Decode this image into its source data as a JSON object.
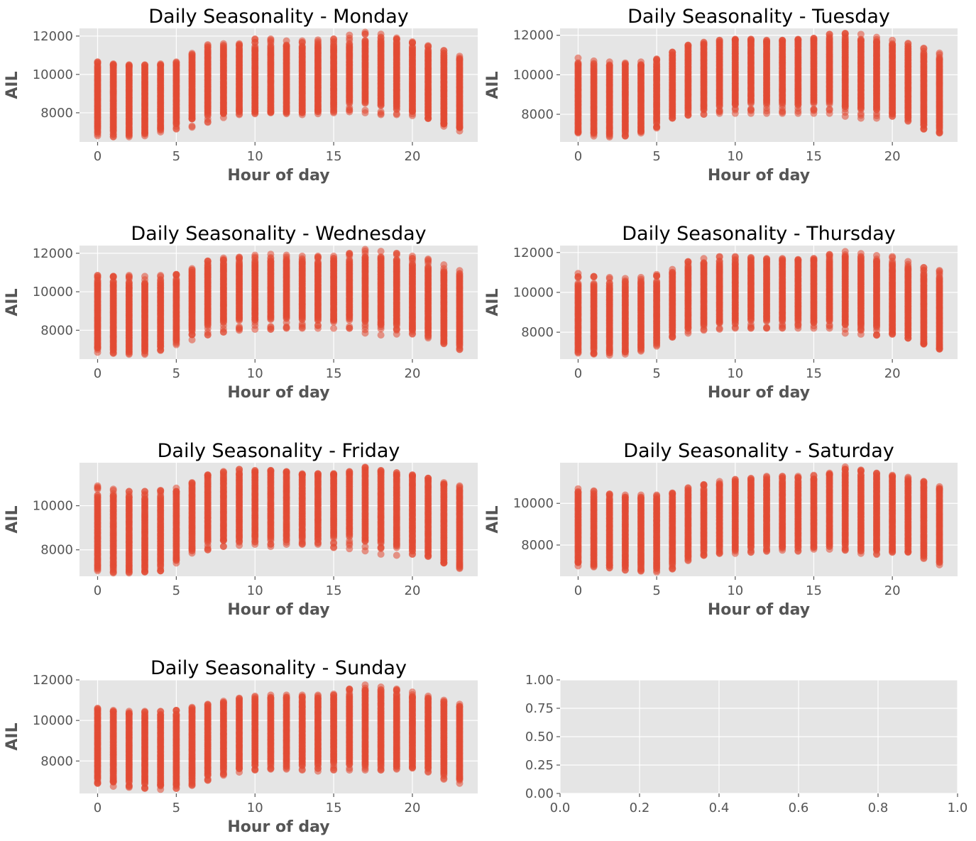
{
  "figure": {
    "background": "#ffffff",
    "plot_background": "#e5e5e5",
    "marker_color": "#e24a33"
  },
  "chart_data": [
    {
      "type": "scatter",
      "title": "Daily Seasonality - Monday",
      "xlabel": "Hour of day",
      "ylabel": "AIL",
      "xlim": [
        -1.15,
        24.15
      ],
      "ylim": [
        6480,
        12400
      ],
      "xticks": [
        0,
        5,
        10,
        15,
        20
      ],
      "yticks": [
        8000,
        10000,
        12000
      ],
      "grid": true,
      "hours": [
        0,
        1,
        2,
        3,
        4,
        5,
        6,
        7,
        8,
        9,
        10,
        11,
        12,
        13,
        14,
        15,
        16,
        17,
        18,
        19,
        20,
        21,
        22,
        23
      ],
      "bottom_outlier": [
        6800,
        6750,
        6750,
        6800,
        7000,
        7150,
        7250,
        7500,
        7750,
        7900,
        7950,
        8000,
        7950,
        7900,
        7950,
        8000,
        8050,
        8000,
        7900,
        7900,
        7850,
        7700,
        7300,
        7050
      ],
      "band_low": [
        7100,
        7000,
        6950,
        7000,
        7200,
        7450,
        7700,
        7900,
        8000,
        8100,
        8100,
        8100,
        8100,
        8100,
        8150,
        8250,
        8500,
        8600,
        8400,
        8300,
        8100,
        7850,
        7450,
        7250
      ],
      "band_high": [
        10450,
        10450,
        10400,
        10350,
        10400,
        10500,
        10900,
        11300,
        11350,
        11400,
        11450,
        11500,
        11450,
        11450,
        11500,
        11550,
        11550,
        11750,
        11750,
        11700,
        11450,
        11250,
        11000,
        10750
      ],
      "top_outlier": [
        10650,
        10550,
        10500,
        10500,
        10550,
        10650,
        11100,
        11550,
        11600,
        11600,
        11850,
        11850,
        11750,
        11750,
        11800,
        11850,
        12050,
        12200,
        12100,
        11900,
        11700,
        11500,
        11250,
        10950
      ],
      "series": [
        {
          "name": "",
          "color": "#e24a33"
        }
      ]
    },
    {
      "type": "scatter",
      "title": "Daily Seasonality - Tuesday",
      "xlabel": "Hour of day",
      "ylabel": "AIL",
      "xlim": [
        -1.15,
        24.15
      ],
      "ylim": [
        6600,
        12350
      ],
      "xticks": [
        0,
        5,
        10,
        15,
        20
      ],
      "yticks": [
        8000,
        10000,
        12000
      ],
      "grid": true,
      "hours": [
        0,
        1,
        2,
        3,
        4,
        5,
        6,
        7,
        8,
        9,
        10,
        11,
        12,
        13,
        14,
        15,
        16,
        17,
        18,
        19,
        20,
        21,
        22,
        23
      ],
      "bottom_outlier": [
        7050,
        6900,
        6850,
        6900,
        7050,
        7300,
        7800,
        7950,
        8000,
        8050,
        8050,
        8050,
        8050,
        8050,
        8050,
        8050,
        8050,
        7900,
        7800,
        7800,
        7900,
        7650,
        7250,
        7050
      ],
      "band_low": [
        7150,
        7100,
        7050,
        7100,
        7200,
        7550,
        7950,
        8150,
        8300,
        8400,
        8500,
        8550,
        8550,
        8500,
        8500,
        8550,
        8600,
        8400,
        8300,
        8250,
        8050,
        7850,
        7450,
        7250
      ],
      "band_high": [
        10500,
        10400,
        10400,
        10400,
        10450,
        10600,
        11000,
        11350,
        11500,
        11600,
        11700,
        11700,
        11650,
        11650,
        11700,
        11750,
        11800,
        11850,
        11700,
        11650,
        11450,
        11350,
        11050,
        10800
      ],
      "top_outlier": [
        10850,
        10700,
        10650,
        10600,
        10650,
        10800,
        11150,
        11500,
        11650,
        11750,
        11800,
        11800,
        11750,
        11750,
        11800,
        11850,
        12050,
        12100,
        12050,
        11900,
        11750,
        11600,
        11350,
        11100
      ],
      "series": [
        {
          "name": "",
          "color": "#e24a33"
        }
      ]
    },
    {
      "type": "scatter",
      "title": "Daily Seasonality - Wednesday",
      "xlabel": "Hour of day",
      "ylabel": "AIL",
      "xlim": [
        -1.15,
        24.15
      ],
      "ylim": [
        6500,
        12400
      ],
      "xticks": [
        0,
        5,
        10,
        15,
        20
      ],
      "yticks": [
        8000,
        10000,
        12000
      ],
      "grid": true,
      "hours": [
        0,
        1,
        2,
        3,
        4,
        5,
        6,
        7,
        8,
        9,
        10,
        11,
        12,
        13,
        14,
        15,
        16,
        17,
        18,
        19,
        20,
        21,
        22,
        23
      ],
      "bottom_outlier": [
        6850,
        6800,
        6750,
        6750,
        6950,
        7250,
        7500,
        7750,
        7900,
        8000,
        8050,
        8050,
        8100,
        8100,
        8100,
        8100,
        8100,
        7850,
        7750,
        7800,
        7800,
        7600,
        7300,
        7000
      ],
      "band_low": [
        7100,
        7000,
        6950,
        7000,
        7150,
        7500,
        7950,
        8250,
        8400,
        8500,
        8550,
        8550,
        8600,
        8550,
        8550,
        8550,
        8600,
        8450,
        8300,
        8250,
        8050,
        7850,
        7450,
        7250
      ],
      "band_high": [
        10600,
        10550,
        10500,
        10400,
        10500,
        10650,
        11000,
        11400,
        11500,
        11550,
        11550,
        11600,
        11600,
        11550,
        11550,
        11600,
        11650,
        11800,
        11700,
        11650,
        11450,
        11300,
        11000,
        10800
      ],
      "top_outlier": [
        10850,
        10800,
        10850,
        10800,
        10850,
        10900,
        11200,
        11600,
        11750,
        11800,
        11900,
        11950,
        11900,
        11850,
        11850,
        11850,
        12000,
        12200,
        12100,
        12000,
        11850,
        11700,
        11400,
        11100
      ],
      "series": [
        {
          "name": "",
          "color": "#e24a33"
        }
      ]
    },
    {
      "type": "scatter",
      "title": "Daily Seasonality - Thursday",
      "xlabel": "Hour of day",
      "ylabel": "AIL",
      "xlim": [
        -1.15,
        24.15
      ],
      "ylim": [
        6650,
        12350
      ],
      "xticks": [
        0,
        5,
        10,
        15,
        20
      ],
      "yticks": [
        8000,
        10000,
        12000
      ],
      "grid": true,
      "hours": [
        0,
        1,
        2,
        3,
        4,
        5,
        6,
        7,
        8,
        9,
        10,
        11,
        12,
        13,
        14,
        15,
        16,
        17,
        18,
        19,
        20,
        21,
        22,
        23
      ],
      "bottom_outlier": [
        6950,
        6900,
        6850,
        6900,
        7050,
        7300,
        7750,
        7950,
        8100,
        8150,
        8200,
        8200,
        8200,
        8200,
        8200,
        8200,
        8200,
        7950,
        7900,
        7850,
        7900,
        7700,
        7400,
        7150
      ],
      "band_low": [
        7150,
        7100,
        7050,
        7100,
        7250,
        7550,
        7950,
        8250,
        8400,
        8500,
        8550,
        8600,
        8600,
        8550,
        8550,
        8550,
        8600,
        8450,
        8300,
        8250,
        8050,
        7850,
        7450,
        7250
      ],
      "band_high": [
        10450,
        10400,
        10350,
        10400,
        10450,
        10550,
        10900,
        11300,
        11400,
        11450,
        11500,
        11550,
        11550,
        11550,
        11550,
        11600,
        11650,
        11750,
        11650,
        11550,
        11400,
        11200,
        10950,
        10750
      ],
      "top_outlier": [
        10950,
        10800,
        10750,
        10700,
        10750,
        10900,
        11150,
        11550,
        11700,
        11800,
        11800,
        11750,
        11700,
        11700,
        11650,
        11700,
        11900,
        12050,
        11950,
        11850,
        11800,
        11550,
        11250,
        11100
      ],
      "series": [
        {
          "name": "",
          "color": "#e24a33"
        }
      ]
    },
    {
      "type": "scatter",
      "title": "Daily Seasonality - Friday",
      "xlabel": "Hour of day",
      "ylabel": "AIL",
      "xlim": [
        -1.15,
        24.15
      ],
      "ylim": [
        6800,
        11950
      ],
      "xticks": [
        0,
        5,
        10,
        15,
        20
      ],
      "yticks": [
        8000,
        10000
      ],
      "grid": true,
      "hours": [
        0,
        1,
        2,
        3,
        4,
        5,
        6,
        7,
        8,
        9,
        10,
        11,
        12,
        13,
        14,
        15,
        16,
        17,
        18,
        19,
        20,
        21,
        22,
        23
      ],
      "bottom_outlier": [
        7050,
        6950,
        6950,
        7000,
        7050,
        7400,
        7850,
        8000,
        8150,
        8200,
        8250,
        8150,
        8250,
        8250,
        8250,
        8100,
        8050,
        7950,
        7800,
        7750,
        7800,
        7700,
        7400,
        7150
      ],
      "band_low": [
        7250,
        7150,
        7100,
        7150,
        7250,
        7600,
        8050,
        8350,
        8450,
        8500,
        8550,
        8500,
        8550,
        8500,
        8500,
        8550,
        8600,
        8450,
        8300,
        8250,
        8050,
        7850,
        7500,
        7300
      ],
      "band_high": [
        10500,
        10450,
        10400,
        10350,
        10450,
        10600,
        10900,
        11300,
        11350,
        11450,
        11500,
        11500,
        11450,
        11400,
        11350,
        11400,
        11450,
        11600,
        11500,
        11400,
        11300,
        11150,
        10950,
        10700
      ],
      "top_outlier": [
        10900,
        10750,
        10650,
        10650,
        10700,
        10800,
        11050,
        11400,
        11550,
        11650,
        11600,
        11600,
        11550,
        11450,
        11450,
        11450,
        11550,
        11750,
        11600,
        11500,
        11400,
        11250,
        11050,
        10900
      ],
      "series": [
        {
          "name": "",
          "color": "#e24a33"
        }
      ]
    },
    {
      "type": "scatter",
      "title": "Daily Seasonality - Saturday",
      "xlabel": "Hour of day",
      "ylabel": "AIL",
      "xlim": [
        -1.15,
        24.15
      ],
      "ylim": [
        6500,
        11950
      ],
      "xticks": [
        0,
        5,
        10,
        15,
        20
      ],
      "yticks": [
        8000,
        10000
      ],
      "grid": true,
      "hours": [
        0,
        1,
        2,
        3,
        4,
        5,
        6,
        7,
        8,
        9,
        10,
        11,
        12,
        13,
        14,
        15,
        16,
        17,
        18,
        19,
        20,
        21,
        22,
        23
      ],
      "bottom_outlier": [
        7000,
        6950,
        6900,
        6800,
        6750,
        6700,
        6850,
        7250,
        7500,
        7600,
        7600,
        7650,
        7700,
        7750,
        7700,
        7800,
        7800,
        7750,
        7600,
        7550,
        7650,
        7650,
        7350,
        7050
      ],
      "band_low": [
        7200,
        7100,
        7050,
        7000,
        6950,
        6950,
        7100,
        7450,
        7700,
        7800,
        7850,
        7900,
        7950,
        7950,
        7950,
        8000,
        8050,
        8000,
        7850,
        7800,
        7800,
        7800,
        7550,
        7300
      ],
      "band_high": [
        10450,
        10350,
        10250,
        10200,
        10200,
        10200,
        10350,
        10550,
        10700,
        10850,
        11000,
        11050,
        11100,
        11100,
        11100,
        11150,
        11350,
        11500,
        11400,
        11300,
        11200,
        11050,
        10900,
        10650
      ],
      "top_outlier": [
        10700,
        10600,
        10450,
        10400,
        10400,
        10400,
        10500,
        10750,
        10900,
        11050,
        11150,
        11200,
        11300,
        11300,
        11300,
        11350,
        11450,
        11750,
        11600,
        11450,
        11350,
        11250,
        11050,
        10800
      ],
      "series": [
        {
          "name": "",
          "color": "#e24a33"
        }
      ]
    },
    {
      "type": "scatter",
      "title": "Daily Seasonality - Sunday",
      "xlabel": "Hour of day",
      "ylabel": "AIL",
      "xlim": [
        -1.15,
        24.15
      ],
      "ylim": [
        6400,
        12000
      ],
      "xticks": [
        0,
        5,
        10,
        15,
        20
      ],
      "yticks": [
        8000,
        10000,
        12000
      ],
      "grid": true,
      "hours": [
        0,
        1,
        2,
        3,
        4,
        5,
        6,
        7,
        8,
        9,
        10,
        11,
        12,
        13,
        14,
        15,
        16,
        17,
        18,
        19,
        20,
        21,
        22,
        23
      ],
      "bottom_outlier": [
        6900,
        6750,
        6700,
        6650,
        6600,
        6650,
        6800,
        7050,
        7300,
        7450,
        7550,
        7600,
        7600,
        7550,
        7500,
        7550,
        7550,
        7550,
        7550,
        7600,
        7650,
        7450,
        7100,
        6900
      ],
      "band_low": [
        7100,
        7000,
        6950,
        6900,
        6850,
        6850,
        7000,
        7300,
        7550,
        7700,
        7800,
        7850,
        7850,
        7850,
        7850,
        7900,
        7900,
        7850,
        7800,
        7800,
        7800,
        7700,
        7400,
        7150
      ],
      "band_high": [
        10450,
        10350,
        10300,
        10250,
        10250,
        10300,
        10500,
        10650,
        10800,
        10950,
        11000,
        11050,
        11050,
        11050,
        11050,
        11100,
        11300,
        11450,
        11400,
        11300,
        11150,
        11000,
        10800,
        10600
      ],
      "top_outlier": [
        10600,
        10500,
        10450,
        10450,
        10450,
        10500,
        10650,
        10800,
        10950,
        11100,
        11200,
        11250,
        11250,
        11250,
        11250,
        11300,
        11550,
        11750,
        11650,
        11550,
        11400,
        11200,
        11000,
        10800
      ],
      "series": [
        {
          "name": "",
          "color": "#e24a33"
        }
      ]
    },
    {
      "type": "scatter",
      "title": "",
      "xlabel": "",
      "ylabel": "",
      "xlim": [
        0,
        1
      ],
      "ylim": [
        0,
        1
      ],
      "xticks": [
        0,
        0.2,
        0.4,
        0.6,
        0.8,
        1
      ],
      "xticklabels": [
        "0.0",
        "0.2",
        "0.4",
        "0.6",
        "0.8",
        "1.0"
      ],
      "yticks": [
        0,
        0.25,
        0.5,
        0.75,
        1
      ],
      "yticklabels": [
        "0.00",
        "0.25",
        "0.50",
        "0.75",
        "1.00"
      ],
      "grid": true,
      "series": []
    }
  ]
}
